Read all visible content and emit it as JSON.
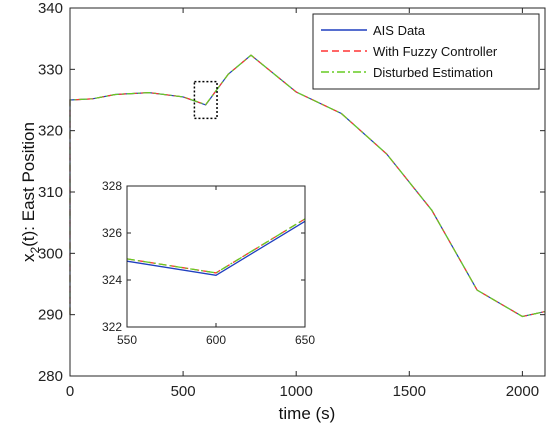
{
  "chart_data": {
    "type": "line",
    "title": "",
    "xlabel": "time (s)",
    "ylabel_main": "x",
    "ylabel_sub": "2",
    "ylabel_rest": "(t): East Position",
    "xlim": [
      0,
      2100
    ],
    "ylim": [
      280,
      340
    ],
    "xticks": [
      0,
      500,
      1000,
      1500,
      2000
    ],
    "yticks": [
      280,
      290,
      300,
      310,
      320,
      330,
      340
    ],
    "grid": false,
    "legend_position": "top-right",
    "series": [
      {
        "name": "AIS Data",
        "color": "#1f3fbf",
        "style": "solid",
        "x": [
          0,
          0,
          100,
          200,
          350,
          500,
          600,
          700,
          800,
          1000,
          1200,
          1400,
          1600,
          1800,
          2000,
          2100
        ],
        "y": [
          290,
          325,
          325.2,
          325.9,
          326.2,
          325.5,
          324.2,
          329.2,
          332.3,
          326.3,
          322.8,
          316.2,
          307,
          294,
          289.7,
          290.5
        ]
      },
      {
        "name": "With Fuzzy Controller",
        "color": "#ff3333",
        "style": "dashed",
        "x": [
          0,
          0,
          100,
          200,
          350,
          500,
          600,
          700,
          800,
          1000,
          1200,
          1400,
          1600,
          1800,
          2000,
          2100
        ],
        "y": [
          290,
          325,
          325.2,
          325.9,
          326.2,
          325.5,
          324.25,
          329.2,
          332.3,
          326.3,
          322.8,
          316.2,
          307,
          294,
          289.7,
          290.5
        ]
      },
      {
        "name": "Disturbed Estimation",
        "color": "#66cc22",
        "style": "dashdot",
        "x": [
          0,
          0,
          100,
          200,
          350,
          500,
          600,
          700,
          800,
          1000,
          1200,
          1400,
          1600,
          1800,
          2000,
          2100
        ],
        "y": [
          290,
          325,
          325.2,
          325.9,
          326.2,
          325.5,
          324.25,
          329.2,
          332.3,
          326.3,
          322.8,
          316.2,
          307,
          294,
          289.7,
          290.5
        ]
      }
    ],
    "zoom_box": {
      "xlim": [
        550,
        650
      ],
      "ylim": [
        322,
        328
      ]
    },
    "inset": {
      "xlim": [
        550,
        650
      ],
      "ylim": [
        322,
        328
      ],
      "xticks": [
        550,
        600,
        650
      ],
      "yticks": [
        322,
        324,
        326,
        328
      ],
      "series": [
        {
          "name": "AIS Data",
          "x": [
            550,
            600,
            650
          ],
          "y": [
            324.8,
            324.2,
            326.5
          ]
        },
        {
          "name": "With Fuzzy Controller",
          "x": [
            550,
            600,
            650
          ],
          "y": [
            324.9,
            324.3,
            326.6
          ]
        },
        {
          "name": "Disturbed Estimation",
          "x": [
            550,
            600,
            650
          ],
          "y": [
            324.9,
            324.3,
            326.6
          ]
        }
      ]
    }
  }
}
